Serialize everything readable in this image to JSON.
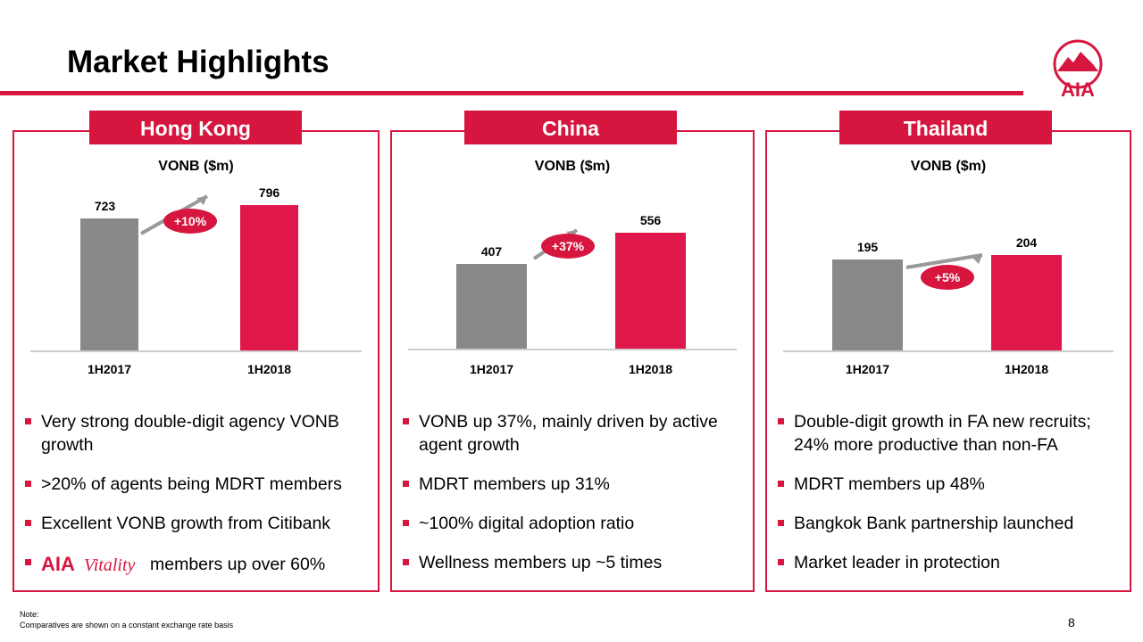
{
  "title": "Market Highlights",
  "logo_text": "AIA",
  "colors": {
    "accent": "#d6163f",
    "prior_bar": "#898989",
    "current_bar": "#e0174b"
  },
  "chart_data": [
    {
      "type": "bar",
      "panel": "Hong Kong",
      "title": "VONB ($m)",
      "categories": [
        "1H2017",
        "1H2018"
      ],
      "values": [
        723,
        796
      ],
      "growth_label": "+10%"
    },
    {
      "type": "bar",
      "panel": "China",
      "title": "VONB ($m)",
      "categories": [
        "1H2017",
        "1H2018"
      ],
      "values": [
        407,
        556
      ],
      "growth_label": "+37%"
    },
    {
      "type": "bar",
      "panel": "Thailand",
      "title": "VONB ($m)",
      "categories": [
        "1H2017",
        "1H2018"
      ],
      "values": [
        195,
        204
      ],
      "growth_label": "+5%"
    }
  ],
  "bullets": [
    [
      "Very strong double-digit agency VONB growth",
      ">20% of agents being MDRT members",
      "Excellent VONB growth from Citibank",
      "members up over 60%"
    ],
    [
      "VONB up 37%, mainly driven by active agent growth",
      "MDRT members up 31%",
      "~100% digital adoption ratio",
      "Wellness members up ~5 times"
    ],
    [
      "Double-digit growth in FA new recruits; 24% more productive than non-FA",
      "MDRT members up 48%",
      "Bangkok Bank partnership launched",
      "Market leader in protection"
    ]
  ],
  "vitality_logo": "AIA Vitality",
  "note": {
    "label": "Note:",
    "text": "Comparatives are shown on a constant exchange rate basis"
  },
  "page_number": "8"
}
